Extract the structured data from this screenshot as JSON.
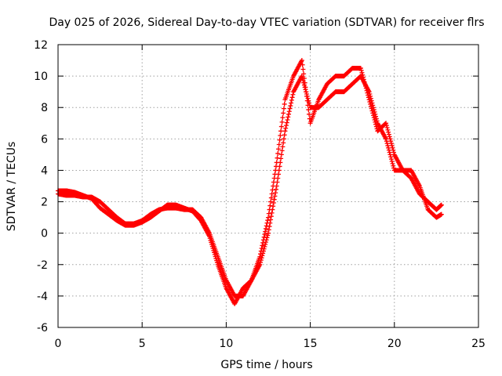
{
  "chart_data": {
    "type": "scatter",
    "title": "Day 025 of 2026, Sidereal Day-to-day VTEC variation (SDTVAR) for receiver flrs",
    "xlabel": "GPS time / hours",
    "ylabel": "SDTVAR / TECUs",
    "xlim": [
      0,
      25
    ],
    "ylim": [
      -6,
      12
    ],
    "xticks": [
      0,
      5,
      10,
      15,
      20,
      25
    ],
    "yticks": [
      -6,
      -4,
      -2,
      0,
      2,
      4,
      6,
      8,
      10,
      12
    ],
    "grid": true,
    "marker": "plus",
    "color": "#ff0000",
    "series": [
      {
        "name": "SDTVAR",
        "x": [
          0,
          0.5,
          1,
          1.5,
          2,
          2.5,
          3,
          3.5,
          4,
          4.5,
          5,
          5.5,
          6,
          6.5,
          7,
          7.5,
          8,
          8.5,
          9,
          9.5,
          10,
          10.5,
          11,
          11.5,
          12,
          12.5,
          13,
          13.5,
          14,
          14.5,
          15,
          15.5,
          16,
          16.5,
          17,
          17.5,
          18,
          18.5,
          19,
          19.5,
          20,
          20.5,
          21,
          21.5,
          22,
          22.5,
          22.8
        ],
        "y": [
          2.5,
          2.4,
          2.4,
          2.3,
          2.3,
          2.0,
          1.5,
          1.0,
          0.6,
          0.6,
          0.8,
          1.2,
          1.5,
          1.6,
          1.6,
          1.5,
          1.5,
          1.0,
          0.0,
          -1.5,
          -3.0,
          -4.0,
          -4.0,
          -3.0,
          -2.0,
          0.0,
          3.0,
          6.5,
          9.0,
          10.0,
          8.0,
          8.0,
          8.5,
          9.0,
          9.0,
          9.5,
          10.0,
          9.0,
          7.0,
          6.0,
          4.0,
          4.0,
          4.0,
          3.0,
          1.5,
          1.0,
          1.2
        ]
      },
      {
        "name": "SDTVAR (second track)",
        "x": [
          0,
          0.5,
          1,
          1.5,
          2,
          2.5,
          3,
          3.5,
          4,
          4.5,
          5,
          5.5,
          6,
          6.5,
          7,
          7.5,
          8,
          8.5,
          9,
          9.5,
          10,
          10.5,
          11,
          11.5,
          12,
          12.5,
          13,
          13.5,
          14,
          14.5,
          15,
          15.5,
          16,
          16.5,
          17,
          17.5,
          18,
          18.5,
          19,
          19.5,
          20,
          20.5,
          21,
          21.5,
          22,
          22.5,
          22.8
        ],
        "y": [
          2.7,
          2.7,
          2.6,
          2.4,
          2.2,
          1.6,
          1.2,
          0.8,
          0.5,
          0.5,
          0.7,
          1.0,
          1.4,
          1.8,
          1.8,
          1.6,
          1.4,
          0.8,
          -0.2,
          -2.0,
          -3.5,
          -4.5,
          -3.5,
          -3.0,
          -1.5,
          1.0,
          4.5,
          8.5,
          10.0,
          11.0,
          7.0,
          8.5,
          9.5,
          10.0,
          10.0,
          10.5,
          10.5,
          8.5,
          6.5,
          7.0,
          5.0,
          4.0,
          3.5,
          2.5,
          2.0,
          1.5,
          1.8
        ]
      }
    ]
  }
}
